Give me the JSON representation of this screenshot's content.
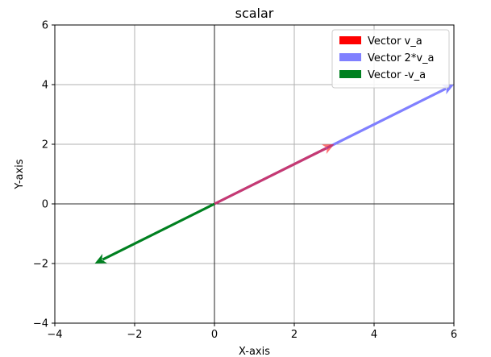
{
  "chart_data": {
    "type": "quiver",
    "title": "scalar",
    "xlabel": "X-axis",
    "ylabel": "Y-axis",
    "xlim": [
      -4,
      6
    ],
    "ylim": [
      -4,
      6
    ],
    "xticks": [
      -4,
      -2,
      0,
      2,
      4,
      6
    ],
    "yticks": [
      -4,
      -2,
      0,
      2,
      4,
      6
    ],
    "xtick_labels": [
      "−4",
      "−2",
      "0",
      "2",
      "4",
      "6"
    ],
    "ytick_labels": [
      "−4",
      "−2",
      "0",
      "2",
      "4",
      "6"
    ],
    "grid": true,
    "legend_position": "upper right",
    "series": [
      {
        "name": "Vector v_a",
        "x0": 0,
        "y0": 0,
        "dx": 3,
        "dy": 2,
        "color": "#ff0000"
      },
      {
        "name": "Vector 2*v_a",
        "x0": 0,
        "y0": 0,
        "dx": 6,
        "dy": 4,
        "color": "#8080ff"
      },
      {
        "name": "Vector -v_a",
        "x0": 0,
        "y0": 0,
        "dx": -3,
        "dy": -2,
        "color": "#008020"
      }
    ]
  }
}
